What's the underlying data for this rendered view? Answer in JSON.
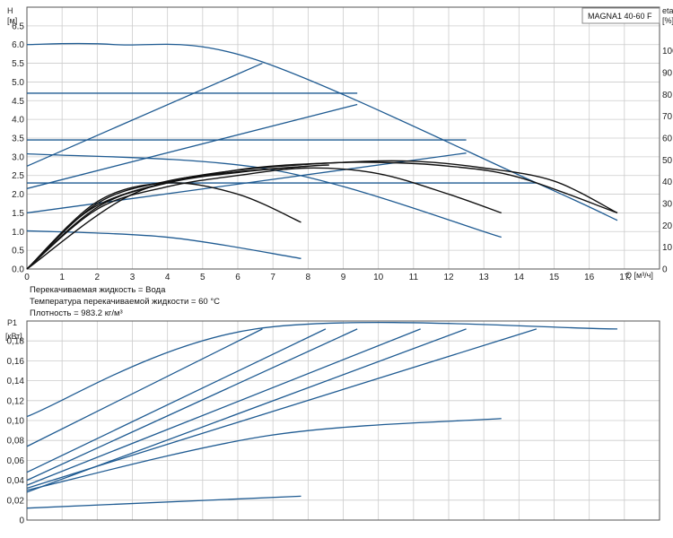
{
  "title": "MAGNA1 40-60 F",
  "info_lines": [
    "Перекачиваемая жидкость = Вода",
    "Температура перекачиваемой жидкости = 60 °C",
    "Плотность = 983.2 кг/м³"
  ],
  "colors": {
    "blue": "#1f5b92",
    "black": "#111111",
    "grid": "#cccccc"
  },
  "chart_data": [
    {
      "type": "line",
      "title": "MAGNA1 40-60 F",
      "ylabel_top": "H",
      "ylabel_unit": "[м]",
      "xlabel": "Q [м³/ч]",
      "y2label_top": "eta",
      "y2label_unit": "[%]",
      "xlim": [
        0,
        18
      ],
      "ylim": [
        0,
        7
      ],
      "y2lim": [
        0,
        120
      ],
      "x_ticks": [
        0,
        1,
        2,
        3,
        4,
        5,
        6,
        7,
        8,
        9,
        10,
        11,
        12,
        13,
        14,
        15,
        16,
        17
      ],
      "y_ticks": [
        0,
        0.5,
        1.0,
        1.5,
        2.0,
        2.5,
        3.0,
        3.5,
        4.0,
        4.5,
        5.0,
        5.5,
        6.0,
        6.5
      ],
      "y_tick_labels": [
        "0.0",
        "0.5",
        "1.0",
        "1.5",
        "2.0",
        "2.5",
        "3.0",
        "3.5",
        "4.0",
        "4.5",
        "5.0",
        "5.5",
        "6.0",
        "6.5"
      ],
      "y2_ticks": [
        0,
        10,
        20,
        30,
        40,
        50,
        60,
        70,
        80,
        90,
        100
      ],
      "grid": true,
      "series": [
        {
          "style": "blue",
          "x": [
            0,
            2.5,
            6.5,
            14.5,
            16.8
          ],
          "y": [
            6.0,
            6.0,
            5.6,
            2.3,
            1.3
          ]
        },
        {
          "style": "blue",
          "x": [
            0,
            6.7
          ],
          "y": [
            2.75,
            5.5
          ]
        },
        {
          "style": "blue",
          "x": [
            0,
            9.4
          ],
          "y": [
            2.15,
            4.4
          ]
        },
        {
          "style": "blue",
          "x": [
            0,
            12.5
          ],
          "y": [
            1.5,
            3.1
          ]
        },
        {
          "style": "blue",
          "x": [
            0,
            9.4
          ],
          "y": [
            4.7,
            4.7
          ]
        },
        {
          "style": "blue",
          "x": [
            0,
            12.5
          ],
          "y": [
            3.45,
            3.45
          ]
        },
        {
          "style": "blue",
          "x": [
            0,
            14.5
          ],
          "y": [
            2.3,
            2.3
          ]
        },
        {
          "style": "blue",
          "x": [
            0,
            7,
            13.5
          ],
          "y": [
            3.08,
            2.65,
            0.85
          ]
        },
        {
          "style": "blue",
          "x": [
            0,
            4,
            7.8
          ],
          "y": [
            1.02,
            0.85,
            0.28
          ]
        },
        {
          "style": "black",
          "x": [
            0,
            2,
            4,
            6,
            7.8
          ],
          "y": [
            0,
            1.8,
            2.3,
            2.0,
            1.25
          ]
        },
        {
          "style": "black",
          "x": [
            0,
            2,
            4,
            6,
            8
          ],
          "y": [
            0,
            1.75,
            2.35,
            2.6,
            2.75
          ]
        },
        {
          "style": "black",
          "x": [
            0,
            2,
            4,
            6,
            8,
            8.6
          ],
          "y": [
            0,
            1.65,
            2.3,
            2.58,
            2.75,
            2.78
          ]
        },
        {
          "style": "black",
          "x": [
            0,
            2,
            4,
            6,
            8,
            10,
            12,
            13.5
          ],
          "y": [
            0,
            1.6,
            2.2,
            2.5,
            2.7,
            2.55,
            2.0,
            1.5
          ]
        },
        {
          "style": "black",
          "x": [
            0,
            2,
            5,
            8,
            10,
            12,
            14,
            16.8
          ],
          "y": [
            0,
            1.7,
            2.5,
            2.8,
            2.85,
            2.75,
            2.45,
            1.5
          ]
        },
        {
          "style": "black",
          "x": [
            0,
            3,
            6,
            9,
            11,
            13,
            15,
            16.8
          ],
          "y": [
            0,
            2.0,
            2.65,
            2.85,
            2.88,
            2.7,
            2.35,
            1.5
          ]
        }
      ]
    },
    {
      "type": "line",
      "ylabel_top": "P1",
      "ylabel_unit": "[кВт]",
      "xlim": [
        0,
        18
      ],
      "ylim": [
        0,
        0.2
      ],
      "y_ticks": [
        0,
        0.02,
        0.04,
        0.06,
        0.08,
        0.1,
        0.12,
        0.14,
        0.16,
        0.18
      ],
      "y_tick_labels": [
        "0",
        "0,02",
        "0,04",
        "0,06",
        "0,08",
        "0,10",
        "0,12",
        "0,14",
        "0,16",
        "0,18"
      ],
      "grid": true,
      "series": [
        {
          "style": "blue",
          "x": [
            0,
            6.5,
            16.8
          ],
          "y": [
            0.104,
            0.192,
            0.192
          ]
        },
        {
          "style": "blue",
          "x": [
            0,
            6.7
          ],
          "y": [
            0.074,
            0.192
          ]
        },
        {
          "style": "blue",
          "x": [
            0,
            8.5
          ],
          "y": [
            0.048,
            0.192
          ]
        },
        {
          "style": "blue",
          "x": [
            0,
            9.4
          ],
          "y": [
            0.04,
            0.192
          ]
        },
        {
          "style": "blue",
          "x": [
            0,
            11.2
          ],
          "y": [
            0.035,
            0.192
          ]
        },
        {
          "style": "blue",
          "x": [
            0,
            12.5
          ],
          "y": [
            0.028,
            0.192
          ]
        },
        {
          "style": "blue",
          "x": [
            0,
            14.5
          ],
          "y": [
            0.032,
            0.192
          ]
        },
        {
          "style": "blue",
          "x": [
            0,
            6.9,
            13.5
          ],
          "y": [
            0.03,
            0.085,
            0.102
          ]
        },
        {
          "style": "blue",
          "x": [
            0,
            7.8
          ],
          "y": [
            0.012,
            0.024
          ]
        }
      ]
    }
  ]
}
